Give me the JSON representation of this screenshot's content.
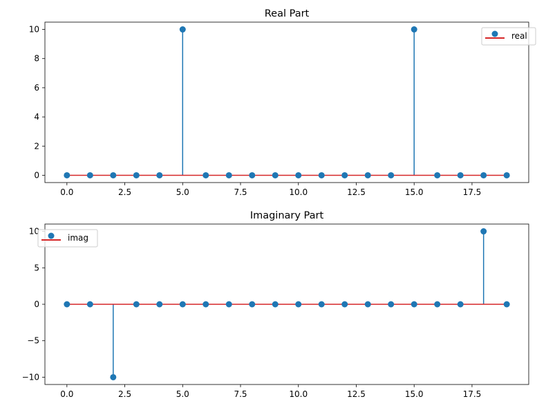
{
  "colors": {
    "stem": "#1f77b4",
    "baseline": "#d62728",
    "axes": "#000000",
    "background": "#ffffff"
  },
  "chart_data": [
    {
      "type": "stem",
      "title": "Real Part",
      "xlabel": "",
      "ylabel": "",
      "xlim": [
        -0.95,
        19.95
      ],
      "ylim": [
        -0.5,
        10.5
      ],
      "x": [
        0,
        1,
        2,
        3,
        4,
        5,
        6,
        7,
        8,
        9,
        10,
        11,
        12,
        13,
        14,
        15,
        16,
        17,
        18,
        19
      ],
      "series": [
        {
          "name": "real",
          "values": [
            0,
            0,
            0,
            0,
            0,
            10,
            0,
            0,
            0,
            0,
            0,
            0,
            0,
            0,
            0,
            10,
            0,
            0,
            0,
            0
          ]
        }
      ],
      "baseline": 0,
      "xticks": [
        0,
        2.5,
        5,
        7.5,
        10,
        12.5,
        15,
        17.5
      ],
      "xtick_labels": [
        "0.0",
        "2.5",
        "5.0",
        "7.5",
        "10.0",
        "12.5",
        "15.0",
        "17.5"
      ],
      "yticks": [
        0,
        2,
        4,
        6,
        8,
        10
      ],
      "ytick_labels": [
        "0",
        "2",
        "4",
        "6",
        "8",
        "10"
      ],
      "legend": {
        "position": "upper-right",
        "entries": [
          "real"
        ]
      },
      "grid": false
    },
    {
      "type": "stem",
      "title": "Imaginary Part",
      "xlabel": "",
      "ylabel": "",
      "xlim": [
        -0.95,
        19.95
      ],
      "ylim": [
        -11,
        11
      ],
      "x": [
        0,
        1,
        2,
        3,
        4,
        5,
        6,
        7,
        8,
        9,
        10,
        11,
        12,
        13,
        14,
        15,
        16,
        17,
        18,
        19
      ],
      "series": [
        {
          "name": "imag",
          "values": [
            0,
            0,
            -10,
            0,
            0,
            0,
            0,
            0,
            0,
            0,
            0,
            0,
            0,
            0,
            0,
            0,
            0,
            0,
            10,
            0
          ]
        }
      ],
      "baseline": 0,
      "xticks": [
        0,
        2.5,
        5,
        7.5,
        10,
        12.5,
        15,
        17.5
      ],
      "xtick_labels": [
        "0.0",
        "2.5",
        "5.0",
        "7.5",
        "10.0",
        "12.5",
        "15.0",
        "17.5"
      ],
      "yticks": [
        -10,
        -5,
        0,
        5,
        10
      ],
      "ytick_labels": [
        "−10",
        "−5",
        "0",
        "5",
        "10"
      ],
      "legend": {
        "position": "upper-left",
        "entries": [
          "imag"
        ]
      },
      "grid": false
    }
  ]
}
